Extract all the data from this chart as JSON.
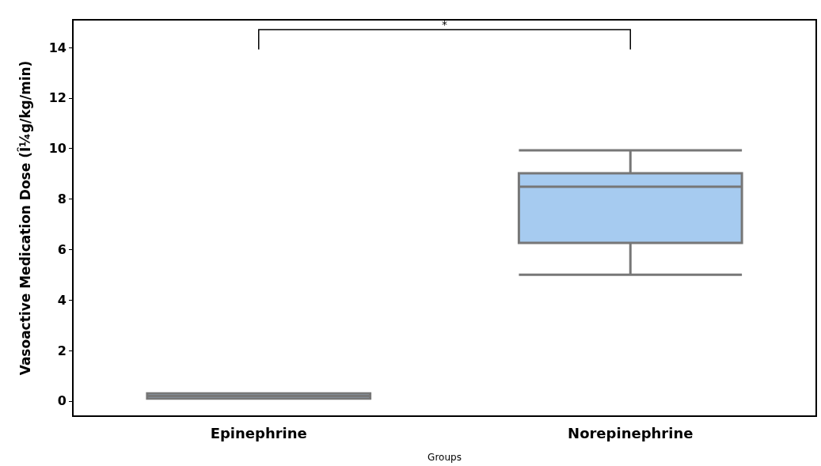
{
  "chart_data": {
    "type": "box",
    "xlabel": "Groups",
    "ylabel": "Vasoactive Medication Dose (Î¼g/kg/min)",
    "categories": [
      "Epinephrine",
      "Norepinephrine"
    ],
    "boxes": [
      {
        "low": 0.1,
        "q1": 0.1,
        "median": 0.2,
        "q3": 0.3,
        "high": 0.3
      },
      {
        "low": 5.0,
        "q1": 6.26,
        "median": 8.49,
        "q3": 9.02,
        "high": 9.93
      }
    ],
    "color": "#a6cbf0",
    "ylim": [
      -0.6,
      15.1
    ],
    "yticks": [
      0,
      2,
      4,
      6,
      8,
      10,
      12,
      14
    ],
    "grid": false,
    "annotations": [
      "*"
    ]
  }
}
